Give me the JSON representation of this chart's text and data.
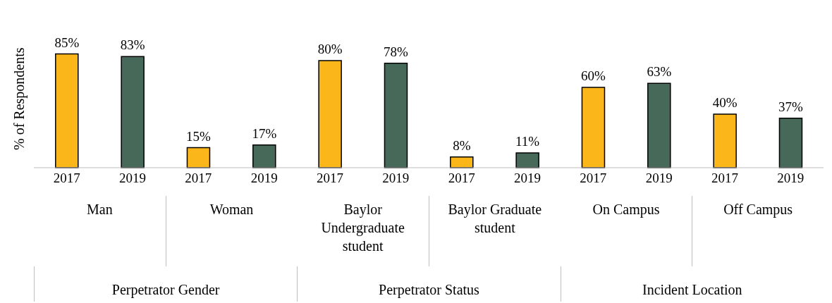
{
  "chart_data": {
    "type": "bar",
    "ylabel": "% of Respondents",
    "categories": [
      "2017",
      "2019",
      "2017",
      "2019",
      "2017",
      "2019",
      "2017",
      "2019",
      "2017",
      "2019",
      "2017",
      "2019"
    ],
    "values": [
      85,
      83,
      15,
      17,
      80,
      78,
      8,
      11,
      60,
      63,
      40,
      37
    ],
    "colors": [
      "#fbb61a",
      "#46695a",
      "#fbb61a",
      "#46695a",
      "#fbb61a",
      "#46695a",
      "#fbb61a",
      "#46695a",
      "#fbb61a",
      "#46695a",
      "#fbb61a",
      "#46695a"
    ],
    "value_labels": [
      "85%",
      "83%",
      "15%",
      "17%",
      "80%",
      "78%",
      "8%",
      "11%",
      "60%",
      "63%",
      "40%",
      "37%"
    ],
    "annotations": [
      "Man",
      "Woman",
      "Baylor Undergraduate student",
      "Baylor Graduate student",
      "On Campus",
      "Off Campus",
      "Perpetrator Gender",
      "Perpetrator Status",
      "Incident Location"
    ]
  }
}
